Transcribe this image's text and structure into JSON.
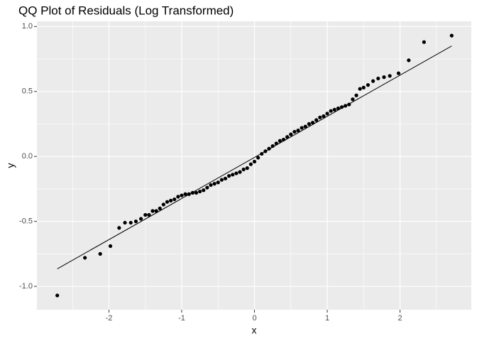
{
  "chart_data": {
    "type": "scatter",
    "title": "QQ Plot of Residuals (Log Transformed)",
    "x_label": "x",
    "y_label": "y",
    "grid": true,
    "color": "#000000",
    "line_color": "#000000",
    "xlim": [
      -2.99,
      2.98
    ],
    "ylim": [
      -1.18,
      1.04
    ],
    "xticks": [
      -2,
      -1,
      0,
      1,
      2
    ],
    "yticks": [
      {
        "value": -1,
        "label": "-1.0"
      },
      -0.5,
      {
        "value": 0,
        "label": "0.0"
      },
      0.5,
      {
        "value": 1,
        "label": "1.0"
      }
    ],
    "x": [
      -2.71,
      -2.33,
      -2.12,
      -1.98,
      -1.86,
      -1.78,
      -1.7,
      -1.63,
      -1.56,
      -1.5,
      -1.45,
      -1.4,
      -1.35,
      -1.3,
      -1.25,
      -1.2,
      -1.15,
      -1.1,
      -1.05,
      -1.0,
      -0.95,
      -0.9,
      -0.85,
      -0.8,
      -0.75,
      -0.7,
      -0.65,
      -0.6,
      -0.55,
      -0.5,
      -0.45,
      -0.4,
      -0.35,
      -0.3,
      -0.25,
      -0.2,
      -0.15,
      -0.1,
      -0.05,
      0,
      0.05,
      0.1,
      0.15,
      0.2,
      0.25,
      0.3,
      0.35,
      0.4,
      0.45,
      0.5,
      0.55,
      0.6,
      0.65,
      0.7,
      0.75,
      0.8,
      0.85,
      0.9,
      0.95,
      1.0,
      1.05,
      1.1,
      1.15,
      1.2,
      1.25,
      1.3,
      1.35,
      1.4,
      1.45,
      1.5,
      1.56,
      1.63,
      1.7,
      1.78,
      1.86,
      1.98,
      2.12,
      2.33,
      2.71
    ],
    "values": [
      -1.07,
      -0.78,
      -0.75,
      -0.69,
      -0.55,
      -0.51,
      -0.51,
      -0.5,
      -0.48,
      -0.45,
      -0.45,
      -0.42,
      -0.42,
      -0.4,
      -0.37,
      -0.35,
      -0.34,
      -0.33,
      -0.31,
      -0.3,
      -0.29,
      -0.29,
      -0.28,
      -0.28,
      -0.27,
      -0.26,
      -0.24,
      -0.22,
      -0.21,
      -0.2,
      -0.18,
      -0.17,
      -0.15,
      -0.14,
      -0.13,
      -0.12,
      -0.1,
      -0.09,
      -0.06,
      -0.04,
      -0.01,
      0.02,
      0.04,
      0.06,
      0.08,
      0.1,
      0.12,
      0.13,
      0.15,
      0.17,
      0.19,
      0.2,
      0.22,
      0.23,
      0.25,
      0.26,
      0.28,
      0.3,
      0.31,
      0.33,
      0.35,
      0.36,
      0.37,
      0.38,
      0.39,
      0.4,
      0.44,
      0.47,
      0.52,
      0.53,
      0.55,
      0.58,
      0.6,
      0.61,
      0.62,
      0.64,
      0.74,
      0.88,
      0.93
    ],
    "qq_line": {
      "x": [
        -2.71,
        2.71
      ],
      "y": [
        -0.865,
        0.85
      ]
    }
  }
}
